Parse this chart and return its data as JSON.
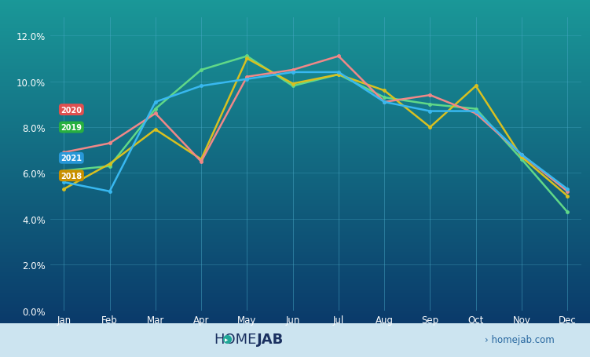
{
  "months": [
    "Jan",
    "Feb",
    "Mar",
    "Apr",
    "May",
    "Jun",
    "Jul",
    "Aug",
    "Sep",
    "Oct",
    "Nov",
    "Dec"
  ],
  "series": {
    "2020": {
      "values": [
        6.9,
        7.3,
        8.6,
        6.5,
        10.2,
        10.5,
        11.1,
        9.1,
        9.4,
        8.6,
        6.8,
        5.2
      ],
      "color": "#f08888"
    },
    "2019": {
      "values": [
        6.1,
        6.3,
        8.8,
        10.5,
        11.1,
        9.8,
        10.3,
        9.3,
        9.0,
        8.8,
        6.6,
        4.3
      ],
      "color": "#60d888"
    },
    "2021": {
      "values": [
        5.6,
        5.2,
        9.1,
        9.8,
        10.1,
        10.4,
        10.4,
        9.1,
        8.7,
        8.7,
        6.8,
        5.3
      ],
      "color": "#38b8f0"
    },
    "2018": {
      "values": [
        5.3,
        6.4,
        7.9,
        6.6,
        11.0,
        9.9,
        10.3,
        9.6,
        8.0,
        9.8,
        6.7,
        5.0
      ],
      "color": "#d8c020"
    }
  },
  "yticks": [
    0.0,
    0.02,
    0.04,
    0.06,
    0.08,
    0.1,
    0.12
  ],
  "ytick_labels": [
    "0.0%",
    "2.0%",
    "4.0%",
    "6.0%",
    "8.0%",
    "10.0%",
    "12.0%"
  ],
  "legend": [
    {
      "label": "2020",
      "bg": "#e05050"
    },
    {
      "label": "2019",
      "bg": "#28b040"
    },
    {
      "label": "2021",
      "bg": "#2898d8"
    },
    {
      "label": "2018",
      "bg": "#c89000"
    }
  ],
  "footer_bg": "#cce4f0",
  "homejab_color": "#1a3060",
  "homejab_link": "#2868a0"
}
